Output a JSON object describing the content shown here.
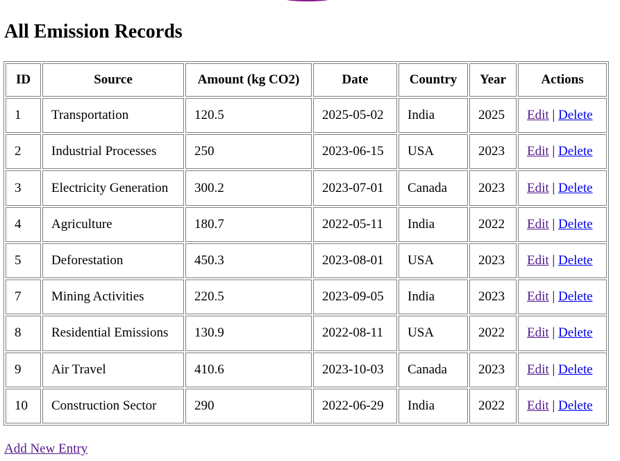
{
  "title": "All Emission Records",
  "table": {
    "headers": [
      "ID",
      "Source",
      "Amount (kg CO2)",
      "Date",
      "Country",
      "Year",
      "Actions"
    ],
    "rows": [
      {
        "id": "1",
        "source": "Transportation",
        "amount": "120.5",
        "date": "2025-05-02",
        "country": "India",
        "year": "2025"
      },
      {
        "id": "2",
        "source": "Industrial Processes",
        "amount": "250",
        "date": "2023-06-15",
        "country": "USA",
        "year": "2023"
      },
      {
        "id": "3",
        "source": "Electricity Generation",
        "amount": "300.2",
        "date": "2023-07-01",
        "country": "Canada",
        "year": "2023"
      },
      {
        "id": "4",
        "source": "Agriculture",
        "amount": "180.7",
        "date": "2022-05-11",
        "country": "India",
        "year": "2022"
      },
      {
        "id": "5",
        "source": "Deforestation",
        "amount": "450.3",
        "date": "2023-08-01",
        "country": "USA",
        "year": "2023"
      },
      {
        "id": "7",
        "source": "Mining Activities",
        "amount": "220.5",
        "date": "2023-09-05",
        "country": "India",
        "year": "2023"
      },
      {
        "id": "8",
        "source": "Residential Emissions",
        "amount": "130.9",
        "date": "2022-08-11",
        "country": "USA",
        "year": "2022"
      },
      {
        "id": "9",
        "source": "Air Travel",
        "amount": "410.6",
        "date": "2023-10-03",
        "country": "Canada",
        "year": "2023"
      },
      {
        "id": "10",
        "source": "Construction Sector",
        "amount": "290",
        "date": "2022-06-29",
        "country": "India",
        "year": "2022"
      }
    ],
    "actions": {
      "edit_label": "Edit",
      "separator": "|",
      "delete_label": "Delete"
    }
  },
  "add_link_label": "Add New Entry",
  "colors": {
    "visited_link": "#551a8b",
    "link": "#0000ee",
    "border": "#808080",
    "accent": "#8a1a8c"
  }
}
